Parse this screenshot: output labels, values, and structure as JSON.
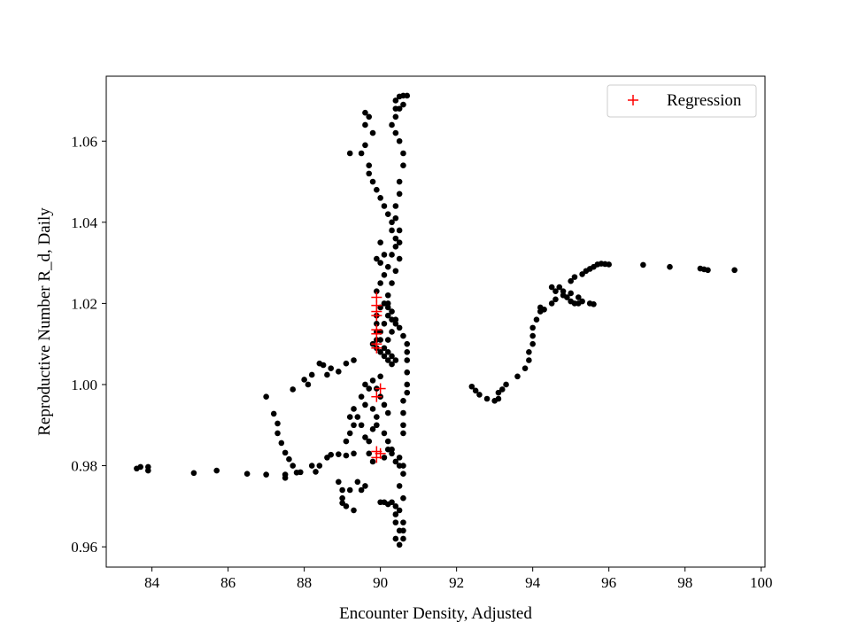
{
  "chart_data": {
    "type": "scatter",
    "title": "",
    "xlabel": "Encounter Density, Adjusted",
    "ylabel": "Reproductive Number R_d, Daily",
    "xlim": [
      82.8,
      100.1
    ],
    "ylim": [
      0.955,
      1.076
    ],
    "xticks": [
      84,
      86,
      88,
      90,
      92,
      94,
      96,
      98,
      100
    ],
    "yticks": [
      0.96,
      0.98,
      1.0,
      1.02,
      1.04,
      1.06
    ],
    "grid": false,
    "legend": {
      "placement": "top-right",
      "entries": [
        "Regression"
      ]
    },
    "colors": {
      "observations": "#000000",
      "regression": "#ff0000"
    },
    "series": [
      {
        "marker": "circle",
        "color": "#000000",
        "points": [
          [
            83.6,
            0.9793
          ],
          [
            83.7,
            0.9797
          ],
          [
            83.9,
            0.9788
          ],
          [
            83.9,
            0.9797
          ],
          [
            85.1,
            0.9782
          ],
          [
            85.7,
            0.9788
          ],
          [
            86.5,
            0.978
          ],
          [
            87.0,
            0.9778
          ],
          [
            87.5,
            0.977
          ],
          [
            87.5,
            0.9778
          ],
          [
            87.8,
            0.9783
          ],
          [
            87.9,
            0.9784
          ],
          [
            87.7,
            0.98
          ],
          [
            87.6,
            0.9816
          ],
          [
            87.5,
            0.9832
          ],
          [
            87.4,
            0.9856
          ],
          [
            87.3,
            0.988
          ],
          [
            87.3,
            0.9904
          ],
          [
            87.2,
            0.9928
          ],
          [
            87.0,
            0.997
          ],
          [
            87.7,
            0.9988
          ],
          [
            88.0,
            1.0012
          ],
          [
            88.1,
            1.0
          ],
          [
            88.2,
            1.0024
          ],
          [
            88.4,
            1.0052
          ],
          [
            88.5,
            1.0048
          ],
          [
            88.7,
            1.004
          ],
          [
            88.9,
            1.0032
          ],
          [
            89.1,
            1.0052
          ],
          [
            89.3,
            1.006
          ],
          [
            88.6,
            1.0024
          ],
          [
            88.2,
            0.98
          ],
          [
            88.3,
            0.9785
          ],
          [
            88.4,
            0.98
          ],
          [
            88.6,
            0.982
          ],
          [
            88.7,
            0.9827
          ],
          [
            88.9,
            0.9828
          ],
          [
            89.1,
            0.9825
          ],
          [
            89.3,
            0.983
          ],
          [
            88.9,
            0.976
          ],
          [
            89.0,
            0.974
          ],
          [
            89.0,
            0.972
          ],
          [
            89.1,
            0.97
          ],
          [
            89.3,
            0.969
          ],
          [
            89.0,
            0.9708
          ],
          [
            89.4,
            0.976
          ],
          [
            89.5,
            0.974
          ],
          [
            89.2,
            0.974
          ],
          [
            89.6,
            0.975
          ],
          [
            89.1,
            0.986
          ],
          [
            89.2,
            0.988
          ],
          [
            89.3,
            0.99
          ],
          [
            89.4,
            0.992
          ],
          [
            89.2,
            0.992
          ],
          [
            89.3,
            0.994
          ],
          [
            89.5,
            0.99
          ],
          [
            89.6,
            0.987
          ],
          [
            89.7,
            0.986
          ],
          [
            89.8,
            0.989
          ],
          [
            89.9,
            0.992
          ],
          [
            89.8,
            0.994
          ],
          [
            89.6,
            0.995
          ],
          [
            89.5,
            0.997
          ],
          [
            89.7,
            0.999
          ],
          [
            89.9,
            0.999
          ],
          [
            89.6,
            1.0
          ],
          [
            89.8,
            1.001
          ],
          [
            90.0,
            1.002
          ],
          [
            90.0,
            0.997
          ],
          [
            90.1,
            0.995
          ],
          [
            90.2,
            0.993
          ],
          [
            89.9,
            0.99
          ],
          [
            90.1,
            0.988
          ],
          [
            90.2,
            0.986
          ],
          [
            90.3,
            0.984
          ],
          [
            90.1,
            0.982
          ],
          [
            90.4,
            0.981
          ],
          [
            89.8,
            0.981
          ],
          [
            89.7,
            0.983
          ],
          [
            90.0,
            0.971
          ],
          [
            90.1,
            0.971
          ],
          [
            90.2,
            0.9705
          ],
          [
            90.3,
            0.971
          ],
          [
            90.4,
            0.97
          ],
          [
            90.4,
            0.968
          ],
          [
            90.4,
            0.966
          ],
          [
            90.5,
            0.964
          ],
          [
            90.4,
            0.962
          ],
          [
            90.5,
            0.9605
          ],
          [
            90.6,
            0.962
          ],
          [
            90.6,
            0.964
          ],
          [
            90.6,
            0.966
          ],
          [
            90.5,
            0.969
          ],
          [
            90.6,
            0.972
          ],
          [
            90.5,
            0.975
          ],
          [
            90.6,
            0.978
          ],
          [
            90.6,
            0.98
          ],
          [
            90.5,
            0.982
          ],
          [
            90.3,
            0.983
          ],
          [
            90.2,
            0.984
          ],
          [
            90.5,
            0.98
          ],
          [
            90.6,
            0.988
          ],
          [
            90.6,
            0.99
          ],
          [
            90.6,
            0.993
          ],
          [
            90.6,
            0.996
          ],
          [
            90.7,
            0.998
          ],
          [
            90.7,
            1.0
          ],
          [
            90.7,
            1.003
          ],
          [
            90.7,
            1.006
          ],
          [
            90.7,
            1.008
          ],
          [
            90.7,
            1.01
          ],
          [
            90.6,
            1.012
          ],
          [
            90.5,
            1.014
          ],
          [
            90.4,
            1.016
          ],
          [
            90.3,
            1.018
          ],
          [
            90.2,
            1.019
          ],
          [
            90.1,
            1.02
          ],
          [
            90.0,
            1.019
          ],
          [
            89.9,
            1.017
          ],
          [
            89.9,
            1.015
          ],
          [
            89.9,
            1.013
          ],
          [
            90.0,
            1.011
          ],
          [
            90.1,
            1.009
          ],
          [
            90.2,
            1.008
          ],
          [
            90.3,
            1.007
          ],
          [
            90.4,
            1.006
          ],
          [
            90.3,
            1.005
          ],
          [
            90.2,
            1.006
          ],
          [
            90.1,
            1.007
          ],
          [
            90.0,
            1.008
          ],
          [
            89.9,
            1.009
          ],
          [
            89.8,
            1.01
          ],
          [
            89.9,
            1.011
          ],
          [
            90.0,
            1.013
          ],
          [
            90.1,
            1.015
          ],
          [
            90.2,
            1.017
          ],
          [
            90.3,
            1.016
          ],
          [
            90.4,
            1.015
          ],
          [
            90.3,
            1.013
          ],
          [
            90.2,
            1.011
          ],
          [
            89.9,
            1.023
          ],
          [
            90.0,
            1.025
          ],
          [
            90.1,
            1.027
          ],
          [
            90.0,
            1.03
          ],
          [
            89.9,
            1.031
          ],
          [
            90.2,
            1.029
          ],
          [
            90.3,
            1.032
          ],
          [
            90.4,
            1.034
          ],
          [
            90.4,
            1.036
          ],
          [
            90.3,
            1.038
          ],
          [
            90.3,
            1.04
          ],
          [
            90.2,
            1.042
          ],
          [
            90.1,
            1.044
          ],
          [
            90.0,
            1.046
          ],
          [
            89.9,
            1.048
          ],
          [
            89.8,
            1.05
          ],
          [
            89.7,
            1.052
          ],
          [
            89.7,
            1.054
          ],
          [
            89.5,
            1.057
          ],
          [
            89.2,
            1.057
          ],
          [
            89.6,
            1.059
          ],
          [
            89.8,
            1.062
          ],
          [
            89.6,
            1.064
          ],
          [
            89.7,
            1.066
          ],
          [
            89.6,
            1.067
          ],
          [
            90.0,
            1.035
          ],
          [
            90.1,
            1.032
          ],
          [
            90.3,
            1.064
          ],
          [
            90.4,
            1.066
          ],
          [
            90.4,
            1.068
          ],
          [
            90.4,
            1.07
          ],
          [
            90.5,
            1.071
          ],
          [
            90.6,
            1.0712
          ],
          [
            90.7,
            1.0712
          ],
          [
            90.6,
            1.069
          ],
          [
            90.5,
            1.068
          ],
          [
            90.4,
            1.062
          ],
          [
            90.5,
            1.06
          ],
          [
            90.6,
            1.057
          ],
          [
            90.6,
            1.054
          ],
          [
            90.5,
            1.05
          ],
          [
            90.5,
            1.047
          ],
          [
            90.4,
            1.044
          ],
          [
            90.4,
            1.041
          ],
          [
            90.5,
            1.038
          ],
          [
            90.5,
            1.035
          ],
          [
            90.5,
            1.031
          ],
          [
            90.4,
            1.028
          ],
          [
            90.3,
            1.025
          ],
          [
            90.2,
            1.022
          ],
          [
            90.2,
            1.02
          ],
          [
            92.4,
            0.9995
          ],
          [
            92.5,
            0.9985
          ],
          [
            92.6,
            0.9975
          ],
          [
            92.8,
            0.9965
          ],
          [
            93.0,
            0.996
          ],
          [
            93.1,
            0.9965
          ],
          [
            93.1,
            0.998
          ],
          [
            93.2,
            0.9988
          ],
          [
            93.3,
            1.0
          ],
          [
            93.6,
            1.002
          ],
          [
            93.8,
            1.004
          ],
          [
            93.9,
            1.006
          ],
          [
            93.9,
            1.008
          ],
          [
            94.0,
            1.01
          ],
          [
            94.0,
            1.012
          ],
          [
            94.0,
            1.014
          ],
          [
            94.1,
            1.016
          ],
          [
            94.2,
            1.018
          ],
          [
            94.2,
            1.019
          ],
          [
            94.3,
            1.0185
          ],
          [
            94.5,
            1.02
          ],
          [
            94.6,
            1.021
          ],
          [
            94.6,
            1.023
          ],
          [
            94.7,
            1.024
          ],
          [
            94.8,
            1.023
          ],
          [
            94.9,
            1.0215
          ],
          [
            95.0,
            1.0205
          ],
          [
            95.1,
            1.02
          ],
          [
            95.2,
            1.02
          ],
          [
            95.3,
            1.0205
          ],
          [
            95.5,
            1.02
          ],
          [
            95.6,
            1.0198
          ],
          [
            94.5,
            1.024
          ],
          [
            95.0,
            1.0255
          ],
          [
            95.1,
            1.0265
          ],
          [
            95.3,
            1.0272
          ],
          [
            95.4,
            1.028
          ],
          [
            95.5,
            1.0285
          ],
          [
            95.6,
            1.029
          ],
          [
            95.7,
            1.0296
          ],
          [
            95.8,
            1.0298
          ],
          [
            95.9,
            1.0297
          ],
          [
            96.0,
            1.0296
          ],
          [
            94.8,
            1.022
          ],
          [
            95.0,
            1.0225
          ],
          [
            95.2,
            1.0215
          ],
          [
            96.9,
            1.0295
          ],
          [
            97.6,
            1.029
          ],
          [
            98.4,
            1.0286
          ],
          [
            98.5,
            1.0284
          ],
          [
            98.6,
            1.0282
          ],
          [
            99.3,
            1.0282
          ]
        ]
      },
      {
        "name": "Regression",
        "marker": "plus",
        "color": "#ff0000",
        "points": [
          [
            89.9,
            1.0215
          ],
          [
            89.9,
            1.0195
          ],
          [
            89.9,
            1.018
          ],
          [
            89.9,
            1.017
          ],
          [
            89.9,
            1.0135
          ],
          [
            89.9,
            1.0125
          ],
          [
            89.9,
            1.01
          ],
          [
            89.9,
            1.009
          ],
          [
            90.0,
            0.999
          ],
          [
            89.9,
            0.997
          ],
          [
            89.9,
            0.9835
          ],
          [
            90.0,
            0.983
          ],
          [
            89.9,
            0.982
          ]
        ]
      }
    ]
  }
}
